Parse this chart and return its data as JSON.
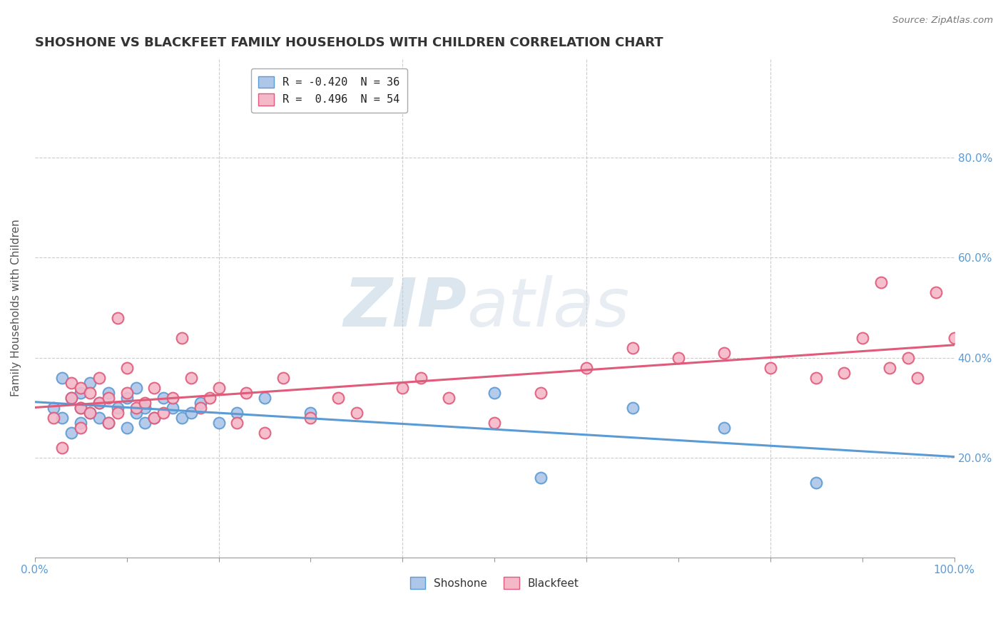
{
  "title": "SHOSHONE VS BLACKFEET FAMILY HOUSEHOLDS WITH CHILDREN CORRELATION CHART",
  "source": "Source: ZipAtlas.com",
  "ylabel": "Family Households with Children",
  "background_color": "#ffffff",
  "watermark_zip": "ZIP",
  "watermark_atlas": "atlas",
  "shoshone_color": "#aec6e8",
  "shoshone_edge_color": "#5b9bd5",
  "shoshone_line_color": "#5b9bd5",
  "blackfeet_color": "#f4b8c8",
  "blackfeet_edge_color": "#e05a7a",
  "blackfeet_line_color": "#e05a7a",
  "shoshone_R": -0.42,
  "shoshone_N": 36,
  "blackfeet_R": 0.496,
  "blackfeet_N": 54,
  "tick_color": "#5b9bd5",
  "grid_color": "#cccccc",
  "xlim": [
    0,
    100
  ],
  "ylim": [
    0,
    100
  ],
  "shoshone_x": [
    2,
    3,
    3,
    4,
    4,
    5,
    5,
    5,
    6,
    6,
    7,
    7,
    8,
    8,
    9,
    10,
    10,
    11,
    11,
    12,
    12,
    13,
    14,
    15,
    16,
    17,
    18,
    20,
    22,
    25,
    30,
    50,
    55,
    65,
    75,
    85
  ],
  "shoshone_y": [
    30,
    28,
    36,
    25,
    32,
    27,
    30,
    33,
    29,
    35,
    31,
    28,
    33,
    27,
    30,
    32,
    26,
    29,
    34,
    27,
    30,
    28,
    32,
    30,
    28,
    29,
    31,
    27,
    29,
    32,
    29,
    33,
    16,
    30,
    26,
    15
  ],
  "blackfeet_x": [
    2,
    3,
    4,
    4,
    5,
    5,
    5,
    6,
    6,
    7,
    7,
    8,
    8,
    9,
    9,
    10,
    10,
    11,
    12,
    13,
    13,
    14,
    15,
    16,
    17,
    18,
    19,
    20,
    22,
    23,
    25,
    27,
    30,
    33,
    35,
    40,
    42,
    45,
    50,
    55,
    60,
    65,
    70,
    75,
    80,
    85,
    88,
    90,
    92,
    93,
    95,
    96,
    98,
    100
  ],
  "blackfeet_y": [
    28,
    22,
    32,
    35,
    26,
    30,
    34,
    29,
    33,
    31,
    36,
    27,
    32,
    29,
    48,
    33,
    38,
    30,
    31,
    28,
    34,
    29,
    32,
    44,
    36,
    30,
    32,
    34,
    27,
    33,
    25,
    36,
    28,
    32,
    29,
    34,
    36,
    32,
    27,
    33,
    38,
    42,
    40,
    41,
    38,
    36,
    37,
    44,
    55,
    38,
    40,
    36,
    53,
    44
  ]
}
